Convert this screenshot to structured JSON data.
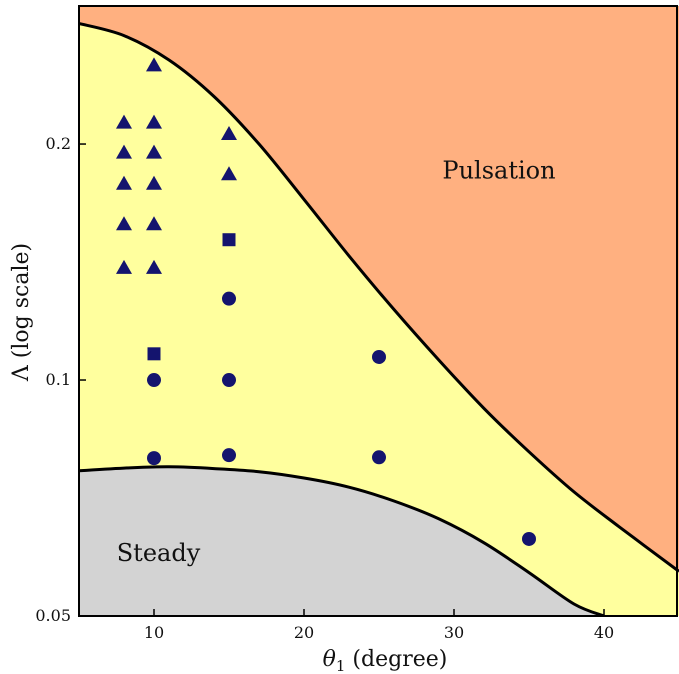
{
  "chart_data": {
    "type": "scatter",
    "title": "",
    "xlabel": "θ1 (degree)",
    "xlabel_main": "θ",
    "xlabel_sub": "1",
    "xlabel_rest": " (degree)",
    "ylabel": "Λ (log scale)",
    "xlim": [
      5,
      45
    ],
    "ylim": [
      0.05,
      0.3
    ],
    "yscale": "log",
    "grid": false,
    "legend": "none",
    "xticks": [
      10,
      20,
      30,
      40
    ],
    "xtick_labels": [
      "10",
      "20",
      "30",
      "40"
    ],
    "yticks": [
      0.05,
      0.1,
      0.2
    ],
    "ytick_labels": [
      "0.05",
      "0.1",
      "0.2"
    ],
    "regions": [
      {
        "label": "Pulsation",
        "color": "#ffb080",
        "label_x": 33,
        "label_y": 0.185
      },
      {
        "label": "",
        "color": "#ffff9e"
      },
      {
        "label": "Steady",
        "color": "#d3d3d3",
        "label_x": 10.3,
        "label_y": 0.0602
      }
    ],
    "boundaries": {
      "upper": {
        "x": [
          5,
          8,
          11,
          14,
          17,
          20,
          23,
          26,
          29,
          32,
          35,
          38,
          41,
          45
        ],
        "y": [
          0.285,
          0.275,
          0.256,
          0.23,
          0.2,
          0.17,
          0.144,
          0.123,
          0.106,
          0.092,
          0.081,
          0.072,
          0.065,
          0.057
        ]
      },
      "lower": {
        "x": [
          5,
          8,
          11,
          14,
          17,
          20,
          23,
          26,
          29,
          32,
          35,
          38,
          40
        ],
        "y": [
          0.0766,
          0.0772,
          0.0775,
          0.0771,
          0.0764,
          0.075,
          0.073,
          0.0701,
          0.0665,
          0.062,
          0.0568,
          0.0518,
          0.05
        ]
      }
    },
    "series": [
      {
        "marker": "triangle",
        "color": "#14146e",
        "points": [
          [
            8,
            0.139
          ],
          [
            8,
            0.158
          ],
          [
            8,
            0.178
          ],
          [
            8,
            0.195
          ],
          [
            8,
            0.213
          ],
          [
            10,
            0.139
          ],
          [
            10,
            0.158
          ],
          [
            10,
            0.178
          ],
          [
            10,
            0.195
          ],
          [
            10,
            0.213
          ],
          [
            10,
            0.252
          ],
          [
            15,
            0.183
          ],
          [
            15,
            0.206
          ]
        ]
      },
      {
        "marker": "square",
        "color": "#14146e",
        "points": [
          [
            10,
            0.108
          ],
          [
            15,
            0.151
          ]
        ]
      },
      {
        "marker": "circle",
        "color": "#14146e",
        "points": [
          [
            10,
            0.1
          ],
          [
            10,
            0.0795
          ],
          [
            15,
            0.1
          ],
          [
            15,
            0.0802
          ],
          [
            15,
            0.127
          ],
          [
            25,
            0.107
          ],
          [
            25,
            0.0797
          ],
          [
            35,
            0.0627
          ]
        ]
      }
    ]
  }
}
